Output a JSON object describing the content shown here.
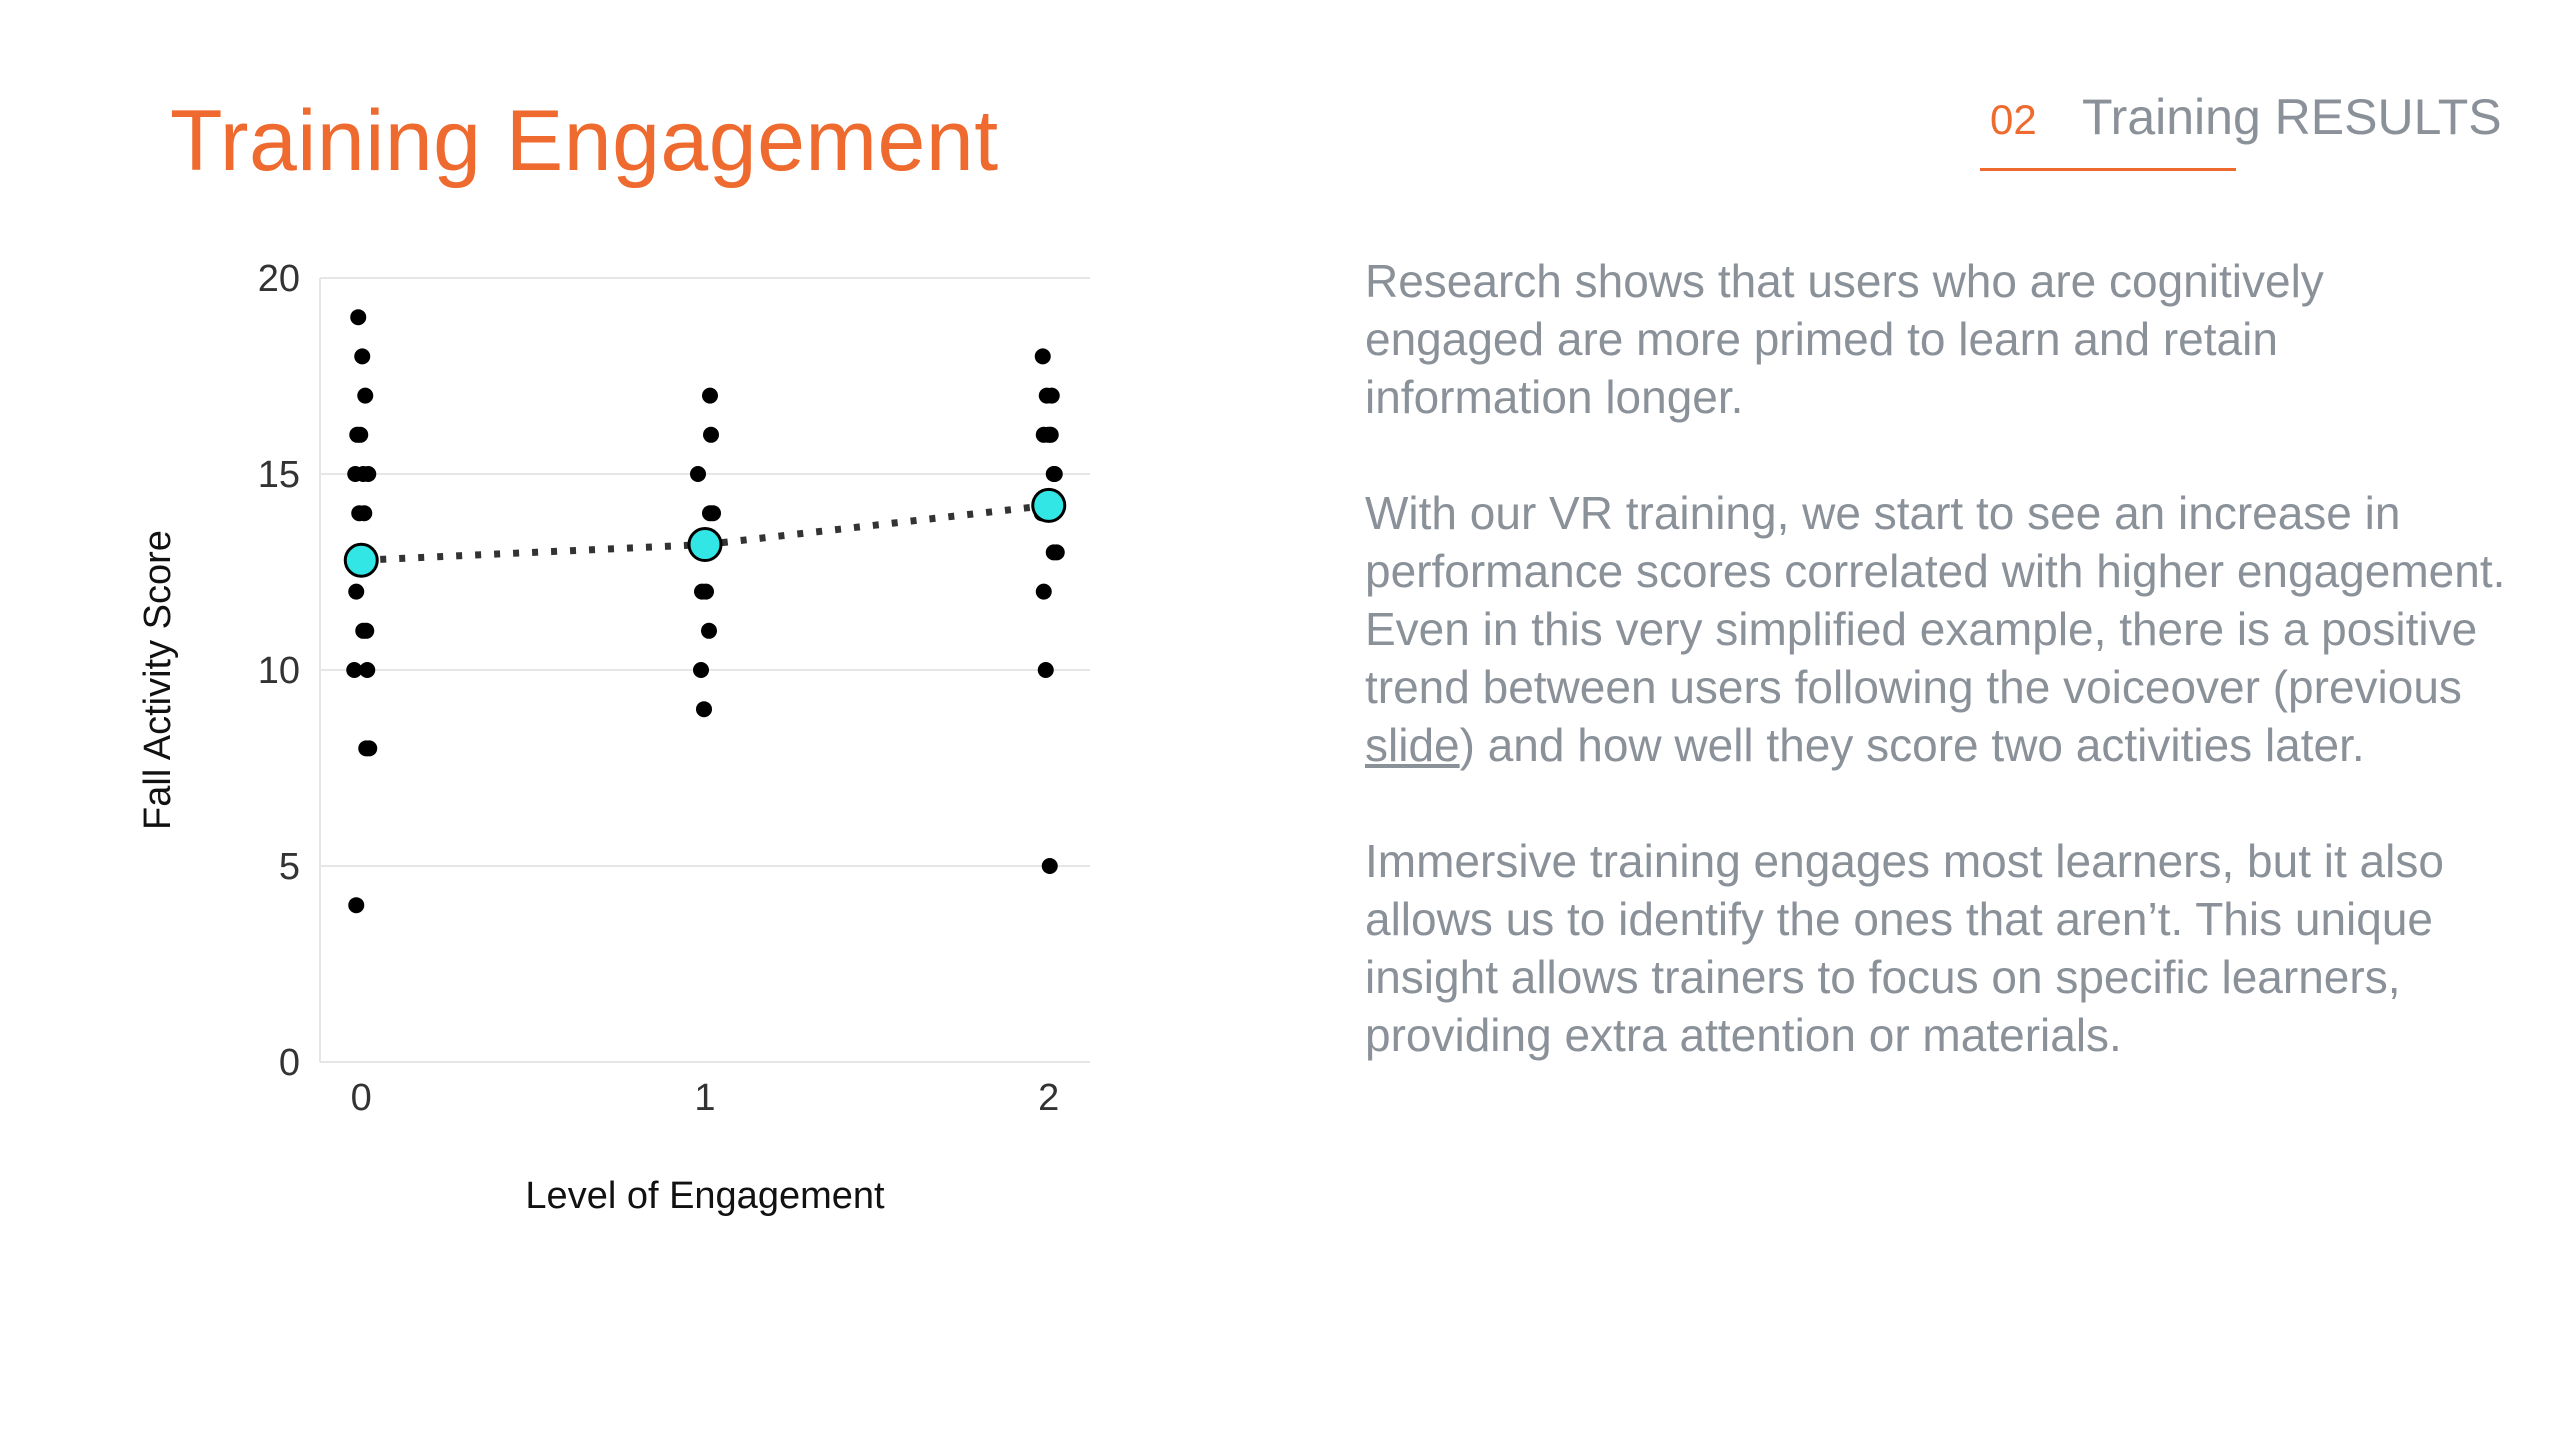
{
  "slide": {
    "title": "Training Engagement",
    "section_number": "02",
    "section_label": "Training RESULTS"
  },
  "colors": {
    "accent": "#ee6a2e",
    "body_text": "#8a9199",
    "mean_marker": "#33e6e6",
    "points": "#000000"
  },
  "body": {
    "paragraph1": "Research shows that users who are cognitively engaged are more primed to learn and retain information longer.",
    "paragraph2_before_link": "With our VR training, we start to see an increase in performance scores correlated with higher engagement. Even in this very simplified example, there is a positive trend between users following the voiceover (previous ",
    "paragraph2_link": "slide",
    "paragraph2_after_link": ") and how well they score two activities later.",
    "paragraph3": "Immersive training engages most learners, but it also allows us to identify the ones that aren’t. This unique insight allows trainers to focus on specific learners, providing extra attention or materials."
  },
  "chart_data": {
    "type": "scatter",
    "title": "",
    "xlabel": "Level of Engagement",
    "ylabel": "Fall Activity Score",
    "x_ticks": [
      "0",
      "1",
      "2"
    ],
    "y_ticks": [
      "0",
      "5",
      "10",
      "15",
      "20"
    ],
    "xlim": [
      -0.12,
      2.12
    ],
    "ylim": [
      0,
      20
    ],
    "grid": "horizontal",
    "legend": "none",
    "series": [
      {
        "points": [
          {
            "x": 0,
            "y": 19
          },
          {
            "x": 0,
            "y": 18
          },
          {
            "x": 0,
            "y": 17
          },
          {
            "x": 0,
            "y": 16
          },
          {
            "x": 0,
            "y": 16
          },
          {
            "x": 0,
            "y": 15
          },
          {
            "x": 0,
            "y": 15
          },
          {
            "x": 0,
            "y": 15
          },
          {
            "x": 0,
            "y": 14
          },
          {
            "x": 0,
            "y": 14
          },
          {
            "x": 0,
            "y": 13
          },
          {
            "x": 0,
            "y": 12
          },
          {
            "x": 0,
            "y": 11
          },
          {
            "x": 0,
            "y": 11
          },
          {
            "x": 0,
            "y": 10
          },
          {
            "x": 0,
            "y": 10
          },
          {
            "x": 0,
            "y": 8
          },
          {
            "x": 0,
            "y": 8
          },
          {
            "x": 0,
            "y": 4
          },
          {
            "x": 1,
            "y": 17
          },
          {
            "x": 1,
            "y": 16
          },
          {
            "x": 1,
            "y": 15
          },
          {
            "x": 1,
            "y": 14
          },
          {
            "x": 1,
            "y": 14
          },
          {
            "x": 1,
            "y": 13
          },
          {
            "x": 1,
            "y": 12
          },
          {
            "x": 1,
            "y": 12
          },
          {
            "x": 1,
            "y": 11
          },
          {
            "x": 1,
            "y": 10
          },
          {
            "x": 1,
            "y": 9
          },
          {
            "x": 2,
            "y": 18
          },
          {
            "x": 2,
            "y": 17
          },
          {
            "x": 2,
            "y": 17
          },
          {
            "x": 2,
            "y": 16
          },
          {
            "x": 2,
            "y": 16
          },
          {
            "x": 2,
            "y": 16
          },
          {
            "x": 2,
            "y": 15
          },
          {
            "x": 2,
            "y": 15
          },
          {
            "x": 2,
            "y": 14
          },
          {
            "x": 2,
            "y": 13
          },
          {
            "x": 2,
            "y": 13
          },
          {
            "x": 2,
            "y": 12
          },
          {
            "x": 2,
            "y": 10
          },
          {
            "x": 2,
            "y": 5
          }
        ]
      },
      {
        "style": "dotted-line-with-markers",
        "points": [
          {
            "x": 0,
            "y": 12.8
          },
          {
            "x": 1,
            "y": 13.2
          },
          {
            "x": 2,
            "y": 14.2
          }
        ]
      }
    ]
  }
}
